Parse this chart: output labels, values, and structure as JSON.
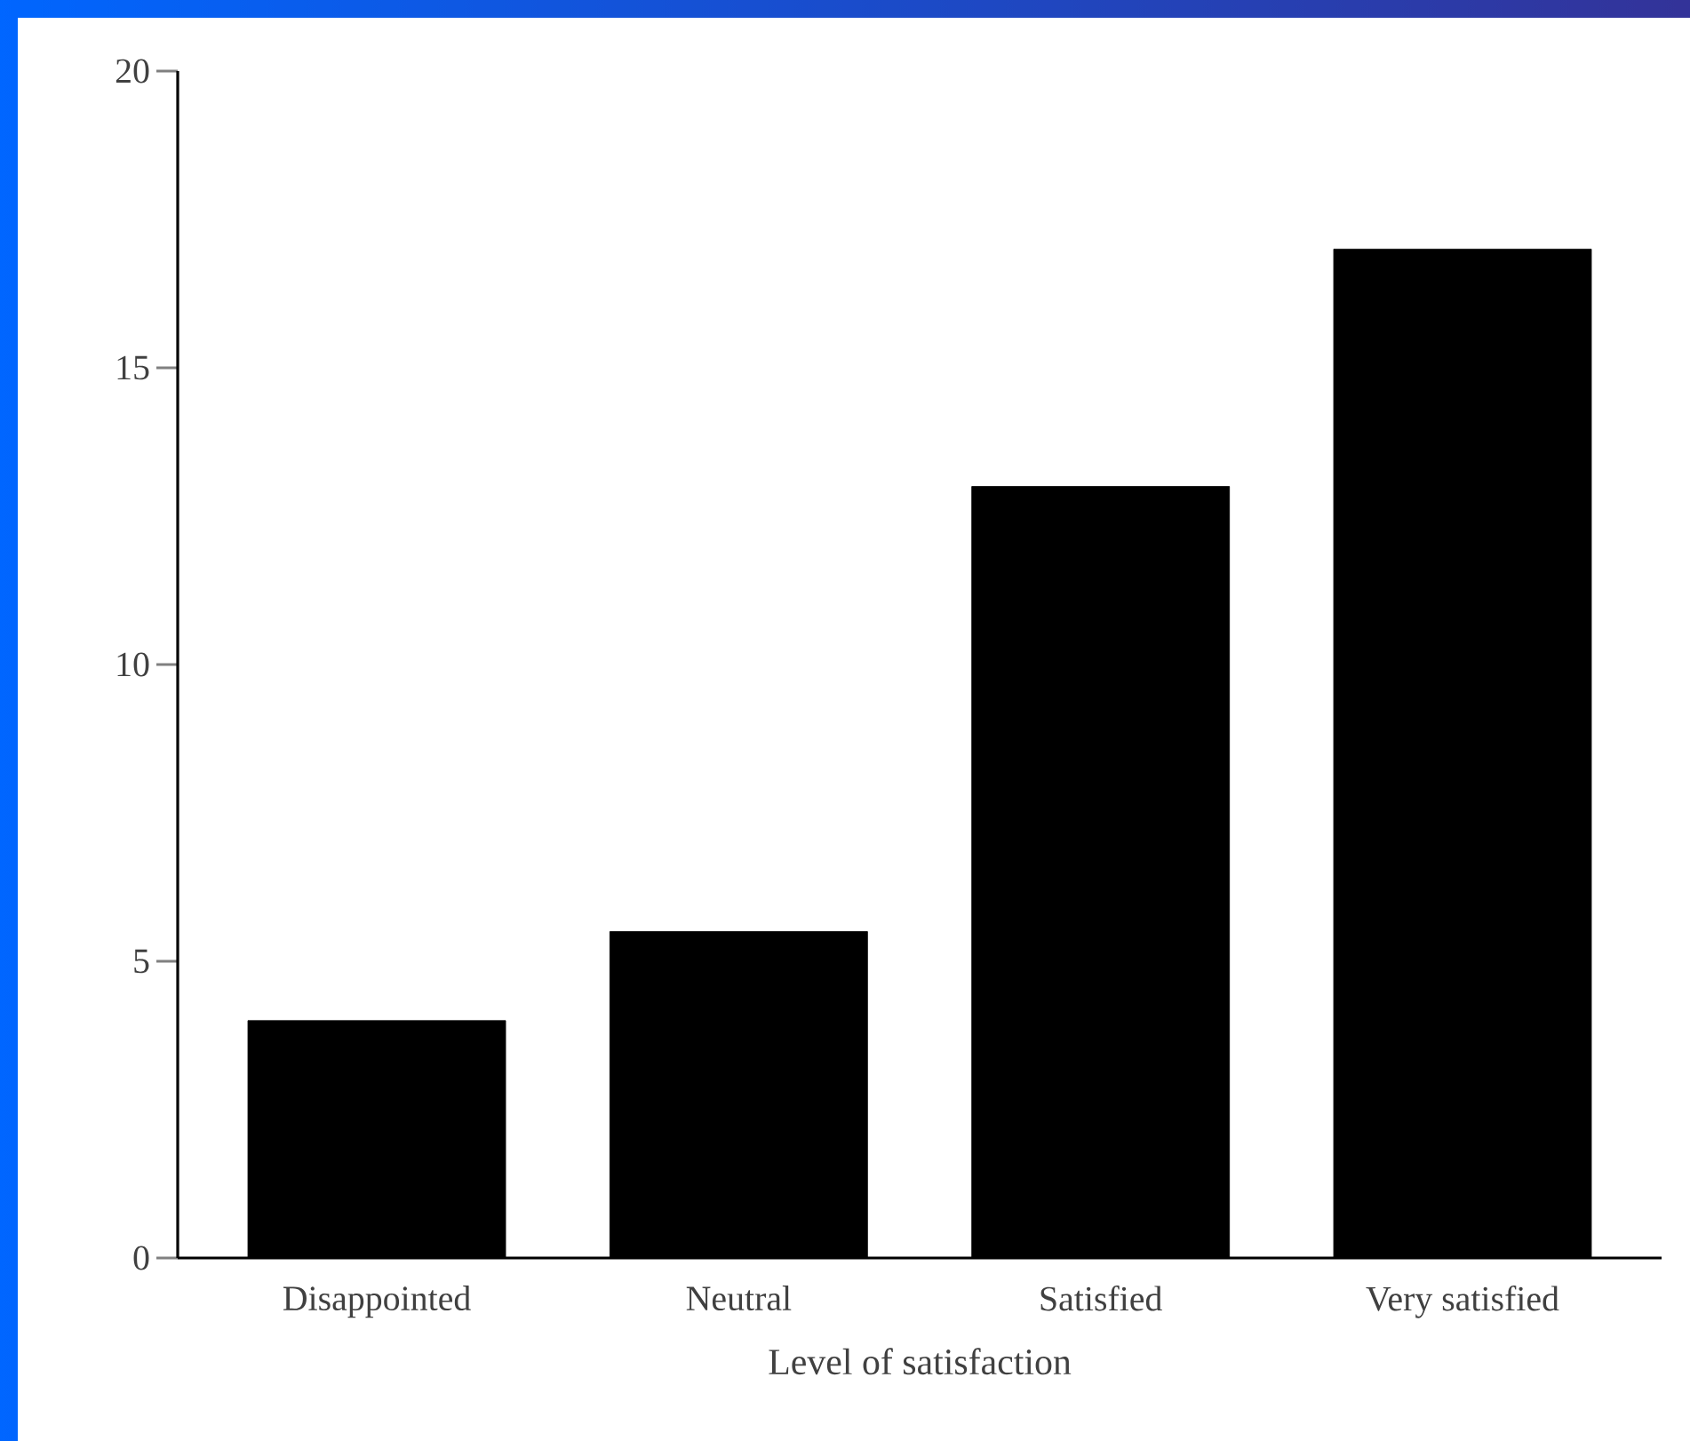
{
  "chart_data": {
    "type": "bar",
    "xlabel": "Level of satisfaction",
    "categories": [
      "Disappointed",
      "Neutral",
      "Satisfied",
      "Very satisfied"
    ],
    "values": [
      4,
      5.5,
      13,
      17
    ],
    "color": "#000000",
    "ylim": [
      0,
      20
    ],
    "yticks": [
      0,
      5,
      10,
      15,
      20
    ]
  }
}
